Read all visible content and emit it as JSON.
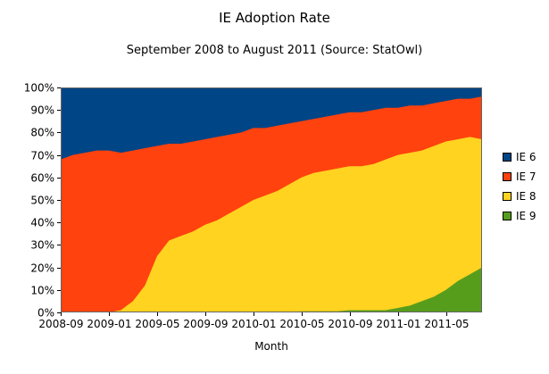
{
  "title": "IE Adoption Rate",
  "subtitle": "September 2008 to August 2011 (Source: StatOwl)",
  "xlabel": "Month",
  "chart_data": {
    "type": "area",
    "stacked": true,
    "title": "IE Adoption Rate",
    "subtitle": "September 2008 to August 2011 (Source: StatOwl)",
    "xlabel": "Month",
    "ylabel": "",
    "ylim": [
      0,
      100
    ],
    "grid": false,
    "legend_position": "right",
    "y_ticks": [
      "0%",
      "10%",
      "20%",
      "30%",
      "40%",
      "50%",
      "60%",
      "70%",
      "80%",
      "90%",
      "100%"
    ],
    "x": [
      "2008-09",
      "2008-10",
      "2008-11",
      "2008-12",
      "2009-01",
      "2009-02",
      "2009-03",
      "2009-04",
      "2009-05",
      "2009-06",
      "2009-07",
      "2009-08",
      "2009-09",
      "2009-10",
      "2009-11",
      "2009-12",
      "2010-01",
      "2010-02",
      "2010-03",
      "2010-04",
      "2010-05",
      "2010-06",
      "2010-07",
      "2010-08",
      "2010-09",
      "2010-10",
      "2010-11",
      "2010-12",
      "2011-01",
      "2011-02",
      "2011-03",
      "2011-04",
      "2011-05",
      "2011-06",
      "2011-07",
      "2011-08"
    ],
    "x_tick_labels": [
      "2008-09",
      "2009-01",
      "2009-05",
      "2009-09",
      "2010-01",
      "2010-05",
      "2010-09",
      "2011-01",
      "2011-05"
    ],
    "stack_order_bottom_to_top": [
      "IE 9",
      "IE 8",
      "IE 7",
      "IE 6"
    ],
    "series": [
      {
        "name": "IE 6",
        "color": "#004586",
        "values": [
          32,
          30,
          29,
          28,
          28,
          29,
          28,
          27,
          26,
          25,
          25,
          24,
          23,
          22,
          21,
          20,
          18,
          18,
          17,
          16,
          15,
          14,
          13,
          12,
          11,
          11,
          10,
          9,
          9,
          8,
          8,
          7,
          6,
          5,
          5,
          4
        ]
      },
      {
        "name": "IE 7",
        "color": "#ff420e",
        "values": [
          68,
          70,
          71,
          72,
          72,
          70,
          67,
          61,
          49,
          43,
          41,
          40,
          38,
          37,
          35,
          33,
          32,
          30,
          29,
          27,
          25,
          24,
          24,
          24,
          24,
          24,
          24,
          23,
          21,
          21,
          20,
          19,
          18,
          18,
          17,
          19
        ]
      },
      {
        "name": "IE 8",
        "color": "#ffd320",
        "values": [
          0,
          0,
          0,
          0,
          0,
          1,
          5,
          12,
          25,
          32,
          34,
          36,
          39,
          41,
          44,
          47,
          50,
          52,
          54,
          57,
          59.5,
          61.5,
          62.5,
          63.5,
          64,
          64,
          65,
          67,
          68,
          68,
          67,
          67,
          66,
          63,
          61,
          57
        ]
      },
      {
        "name": "IE 9",
        "color": "#579d1c",
        "values": [
          0,
          0,
          0,
          0,
          0,
          0,
          0,
          0,
          0,
          0,
          0,
          0,
          0,
          0,
          0,
          0,
          0,
          0,
          0,
          0,
          0.5,
          0.5,
          0.5,
          0.5,
          1,
          1,
          1,
          1,
          2,
          3,
          5,
          7,
          10,
          14,
          17,
          20
        ]
      }
    ]
  }
}
